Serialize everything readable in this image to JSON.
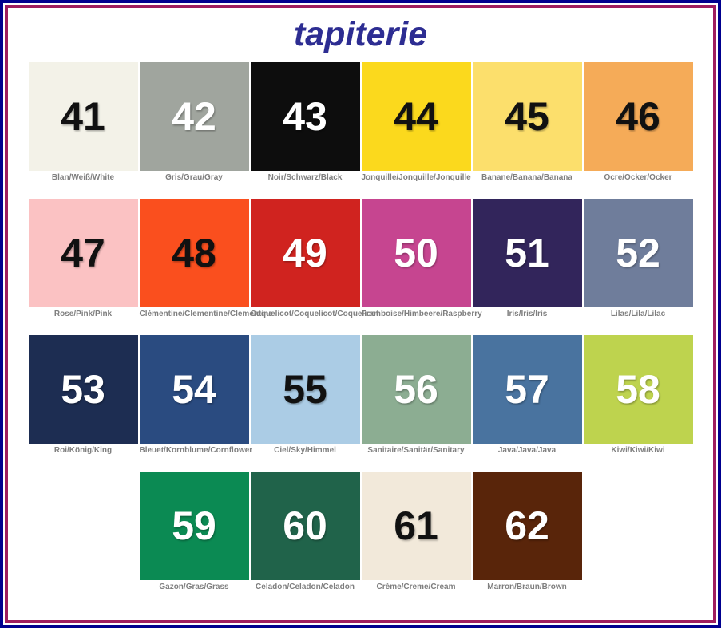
{
  "title": "tapiterie",
  "colors": {
    "outer_border": "#00008f",
    "inner_border": "#9e1d5f",
    "title_text": "#2d2d92",
    "label_text": "#7f7f7f"
  },
  "rows": [
    [
      {
        "number": "41",
        "label": "Blan/Weiß/White",
        "bg": "#f3f2e8",
        "text": "#111111"
      },
      {
        "number": "42",
        "label": "Gris/Grau/Gray",
        "bg": "#a0a59e",
        "text": "#ffffff"
      },
      {
        "number": "43",
        "label": "Noir/Schwarz/Black",
        "bg": "#0d0d0d",
        "text": "#ffffff"
      },
      {
        "number": "44",
        "label": "Jonquille/Jonquille/Jonquille",
        "bg": "#fbd91d",
        "text": "#111111"
      },
      {
        "number": "45",
        "label": "Banane/Banana/Banana",
        "bg": "#fcdf6c",
        "text": "#111111"
      },
      {
        "number": "46",
        "label": "Ocre/Ocker/Ocker",
        "bg": "#f5ab58",
        "text": "#111111"
      }
    ],
    [
      {
        "number": "47",
        "label": "Rose/Pink/Pink",
        "bg": "#fbc2c3",
        "text": "#111111"
      },
      {
        "number": "48",
        "label": "Clémentine/Clementine/Clementine",
        "bg": "#fa4f1e",
        "text": "#111111"
      },
      {
        "number": "49",
        "label": "Coquelicot/Coquelicot/Coquelicot",
        "bg": "#d0231f",
        "text": "#ffffff"
      },
      {
        "number": "50",
        "label": "Framboise/Himbeere/Raspberry",
        "bg": "#c64590",
        "text": "#ffffff"
      },
      {
        "number": "51",
        "label": "Iris/Iris/Iris",
        "bg": "#32255b",
        "text": "#ffffff"
      },
      {
        "number": "52",
        "label": "Lilas/Lila/Lilac",
        "bg": "#6f7d9b",
        "text": "#ffffff"
      }
    ],
    [
      {
        "number": "53",
        "label": "Roi/König/King",
        "bg": "#1d2d52",
        "text": "#ffffff"
      },
      {
        "number": "54",
        "label": "Bleuet/Kornblume/Cornflower",
        "bg": "#2a4b80",
        "text": "#ffffff"
      },
      {
        "number": "55",
        "label": "Ciel/Sky/Himmel",
        "bg": "#abcce5",
        "text": "#111111"
      },
      {
        "number": "56",
        "label": "Sanitaire/Sanitär/Sanitary",
        "bg": "#8cad92",
        "text": "#ffffff"
      },
      {
        "number": "57",
        "label": "Java/Java/Java",
        "bg": "#49739f",
        "text": "#ffffff"
      },
      {
        "number": "58",
        "label": "Kiwi/Kiwi/Kiwi",
        "bg": "#bed34e",
        "text": "#ffffff"
      }
    ],
    [
      {
        "number": "59",
        "label": "Gazon/Gras/Grass",
        "bg": "#0b8a53",
        "text": "#ffffff"
      },
      {
        "number": "60",
        "label": "Celadon/Celadon/Celadon",
        "bg": "#20634a",
        "text": "#ffffff"
      },
      {
        "number": "61",
        "label": "Crème/Creme/Cream",
        "bg": "#f2e9da",
        "text": "#111111"
      },
      {
        "number": "62",
        "label": "Marron/Braun/Brown",
        "bg": "#59250a",
        "text": "#ffffff"
      }
    ]
  ]
}
